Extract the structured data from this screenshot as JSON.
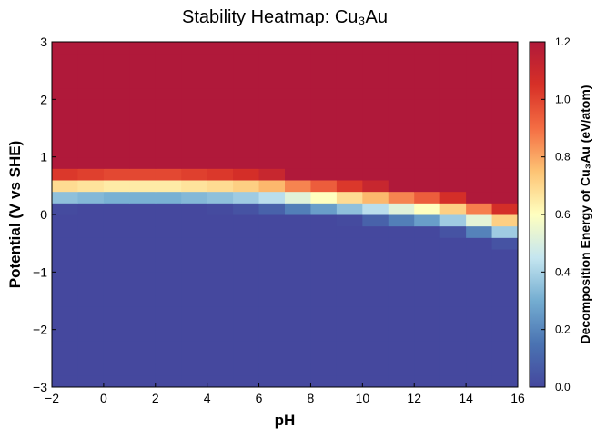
{
  "chart_data": {
    "type": "heatmap",
    "title": "Stability Heatmap: Cu₃Au",
    "x_label": "pH",
    "y_label": "Potential (V vs SHE)",
    "colorbar_label": "Decomposition Energy of Cu₃Au (eV/atom)",
    "xlim": [
      -2,
      16
    ],
    "ylim": [
      -3,
      3
    ],
    "zlim": [
      0,
      1.2
    ],
    "xticks": [
      {
        "value": -2,
        "label": "−2"
      },
      0,
      2,
      4,
      6,
      8,
      10,
      12,
      14,
      16
    ],
    "yticks": [
      {
        "value": -3,
        "label": "−3"
      },
      {
        "value": -2,
        "label": "−2"
      },
      {
        "value": -1,
        "label": "−1"
      },
      0,
      1,
      2,
      3
    ],
    "zticks": [
      {
        "value": 0,
        "label": "0.0"
      },
      0.2,
      0.4,
      0.6,
      0.8,
      {
        "value": 1,
        "label": "1.0"
      },
      1.2
    ],
    "colorscale": [
      "#45489e",
      "#4a73b2",
      "#74add1",
      "#c5e6f0",
      "#ffffbf",
      "#fdc374",
      "#f46d43",
      "#d73027",
      "#b0193a"
    ],
    "z": [
      [
        0,
        0,
        0,
        0,
        0,
        0,
        0,
        0,
        0,
        0,
        0,
        0,
        0,
        0,
        0,
        0,
        0,
        0
      ],
      [
        0,
        0,
        0,
        0,
        0,
        0,
        0,
        0,
        0,
        0,
        0,
        0,
        0,
        0,
        0,
        0,
        0,
        0
      ],
      [
        0,
        0,
        0,
        0,
        0,
        0,
        0,
        0,
        0,
        0,
        0,
        0,
        0,
        0,
        0,
        0,
        0,
        0
      ],
      [
        0,
        0,
        0,
        0,
        0,
        0,
        0,
        0,
        0,
        0,
        0,
        0,
        0,
        0,
        0,
        0,
        0,
        0
      ],
      [
        0,
        0,
        0,
        0,
        0,
        0,
        0,
        0,
        0,
        0,
        0,
        0,
        0,
        0,
        0,
        0,
        0,
        0
      ],
      [
        0,
        0,
        0,
        0,
        0,
        0,
        0,
        0,
        0,
        0,
        0,
        0,
        0,
        0,
        0,
        0,
        0,
        0
      ],
      [
        0,
        0,
        0,
        0,
        0,
        0,
        0,
        0,
        0,
        0,
        0,
        0,
        0,
        0,
        0,
        0,
        0,
        0
      ],
      [
        0,
        0,
        0,
        0,
        0,
        0,
        0,
        0,
        0,
        0,
        0,
        0,
        0,
        0,
        0,
        0,
        0,
        0
      ],
      [
        0,
        0,
        0,
        0,
        0,
        0,
        0,
        0,
        0,
        0,
        0,
        0,
        0,
        0,
        0,
        0,
        0,
        0
      ],
      [
        0,
        0,
        0,
        0,
        0,
        0,
        0,
        0,
        0,
        0,
        0,
        0,
        0,
        0,
        0,
        0,
        0,
        0
      ],
      [
        0,
        0,
        0,
        0,
        0,
        0,
        0,
        0,
        0,
        0,
        0,
        0,
        0,
        0,
        0,
        0,
        0,
        0
      ],
      [
        0,
        0,
        0,
        0,
        0,
        0,
        0,
        0,
        0,
        0,
        0,
        0,
        0,
        0,
        0,
        0,
        0,
        0
      ],
      [
        0,
        0,
        0,
        0,
        0,
        0,
        0,
        0,
        0,
        0,
        0,
        0,
        0,
        0,
        0,
        0,
        0,
        0.04
      ],
      [
        0,
        0,
        0,
        0,
        0,
        0,
        0,
        0,
        0,
        0,
        0,
        0,
        0,
        0,
        0,
        0.04,
        0.19,
        0.38
      ],
      [
        0,
        0,
        0,
        0,
        0,
        0,
        0,
        0,
        0,
        0,
        0,
        0.01,
        0.09,
        0.18,
        0.26,
        0.38,
        0.53,
        0.72
      ],
      [
        0.01,
        0,
        0,
        0,
        0,
        0,
        0.01,
        0.04,
        0.09,
        0.18,
        0.26,
        0.35,
        0.43,
        0.52,
        0.6,
        0.72,
        0.87,
        1.06
      ],
      [
        0.35,
        0.33,
        0.31,
        0.31,
        0.31,
        0.33,
        0.35,
        0.38,
        0.43,
        0.52,
        0.6,
        0.69,
        0.77,
        0.86,
        0.94,
        1.06,
        1.2,
        1.2
      ],
      [
        0.69,
        0.67,
        0.65,
        0.65,
        0.65,
        0.67,
        0.69,
        0.72,
        0.77,
        0.86,
        0.94,
        1.03,
        1.11,
        1.2,
        1.2,
        1.2,
        1.2,
        1.2
      ],
      [
        1.03,
        1.01,
        0.99,
        0.99,
        0.99,
        1.01,
        1.03,
        1.06,
        1.11,
        1.2,
        1.2,
        1.2,
        1.2,
        1.2,
        1.2,
        1.2,
        1.2,
        1.2
      ],
      [
        1.2,
        1.2,
        1.2,
        1.2,
        1.2,
        1.2,
        1.2,
        1.2,
        1.2,
        1.2,
        1.2,
        1.2,
        1.2,
        1.2,
        1.2,
        1.2,
        1.2,
        1.2
      ],
      [
        1.2,
        1.2,
        1.2,
        1.2,
        1.2,
        1.2,
        1.2,
        1.2,
        1.2,
        1.2,
        1.2,
        1.2,
        1.2,
        1.2,
        1.2,
        1.2,
        1.2,
        1.2
      ],
      [
        1.2,
        1.2,
        1.2,
        1.2,
        1.2,
        1.2,
        1.2,
        1.2,
        1.2,
        1.2,
        1.2,
        1.2,
        1.2,
        1.2,
        1.2,
        1.2,
        1.2,
        1.2
      ],
      [
        1.2,
        1.2,
        1.2,
        1.2,
        1.2,
        1.2,
        1.2,
        1.2,
        1.2,
        1.2,
        1.2,
        1.2,
        1.2,
        1.2,
        1.2,
        1.2,
        1.2,
        1.2
      ],
      [
        1.2,
        1.2,
        1.2,
        1.2,
        1.2,
        1.2,
        1.2,
        1.2,
        1.2,
        1.2,
        1.2,
        1.2,
        1.2,
        1.2,
        1.2,
        1.2,
        1.2,
        1.2
      ],
      [
        1.2,
        1.2,
        1.2,
        1.2,
        1.2,
        1.2,
        1.2,
        1.2,
        1.2,
        1.2,
        1.2,
        1.2,
        1.2,
        1.2,
        1.2,
        1.2,
        1.2,
        1.2
      ],
      [
        1.2,
        1.2,
        1.2,
        1.2,
        1.2,
        1.2,
        1.2,
        1.2,
        1.2,
        1.2,
        1.2,
        1.2,
        1.2,
        1.2,
        1.2,
        1.2,
        1.2,
        1.2
      ],
      [
        1.2,
        1.2,
        1.2,
        1.2,
        1.2,
        1.2,
        1.2,
        1.2,
        1.2,
        1.2,
        1.2,
        1.2,
        1.2,
        1.2,
        1.2,
        1.2,
        1.2,
        1.2
      ],
      [
        1.2,
        1.2,
        1.2,
        1.2,
        1.2,
        1.2,
        1.2,
        1.2,
        1.2,
        1.2,
        1.2,
        1.2,
        1.2,
        1.2,
        1.2,
        1.2,
        1.2,
        1.2
      ],
      [
        1.2,
        1.2,
        1.2,
        1.2,
        1.2,
        1.2,
        1.2,
        1.2,
        1.2,
        1.2,
        1.2,
        1.2,
        1.2,
        1.2,
        1.2,
        1.2,
        1.2,
        1.2
      ],
      [
        1.2,
        1.2,
        1.2,
        1.2,
        1.2,
        1.2,
        1.2,
        1.2,
        1.2,
        1.2,
        1.2,
        1.2,
        1.2,
        1.2,
        1.2,
        1.2,
        1.2,
        1.2
      ]
    ]
  }
}
